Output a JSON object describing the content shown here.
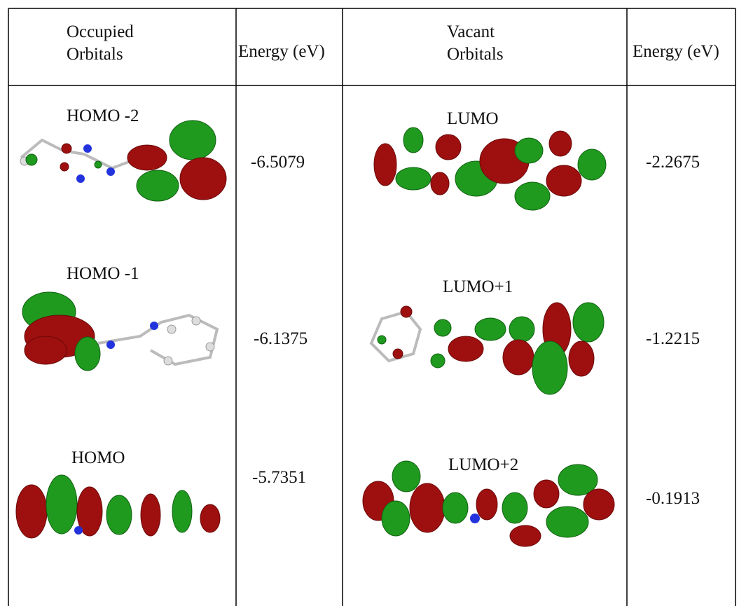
{
  "table": {
    "header": [
      "Occupied Orbitals",
      "Energy (eV)",
      "Vacant Orbitals",
      "Energy (eV)"
    ],
    "rows": [
      [
        "HOMO -2",
        "-6.5079",
        "LUMO",
        "-2.2675"
      ],
      [
        "HOMO -1",
        "-6.1375",
        "LUMO+1",
        "-1.2215"
      ],
      [
        "HOMO",
        "-5.7351",
        "LUMO+2",
        "-0.1913"
      ]
    ]
  }
}
